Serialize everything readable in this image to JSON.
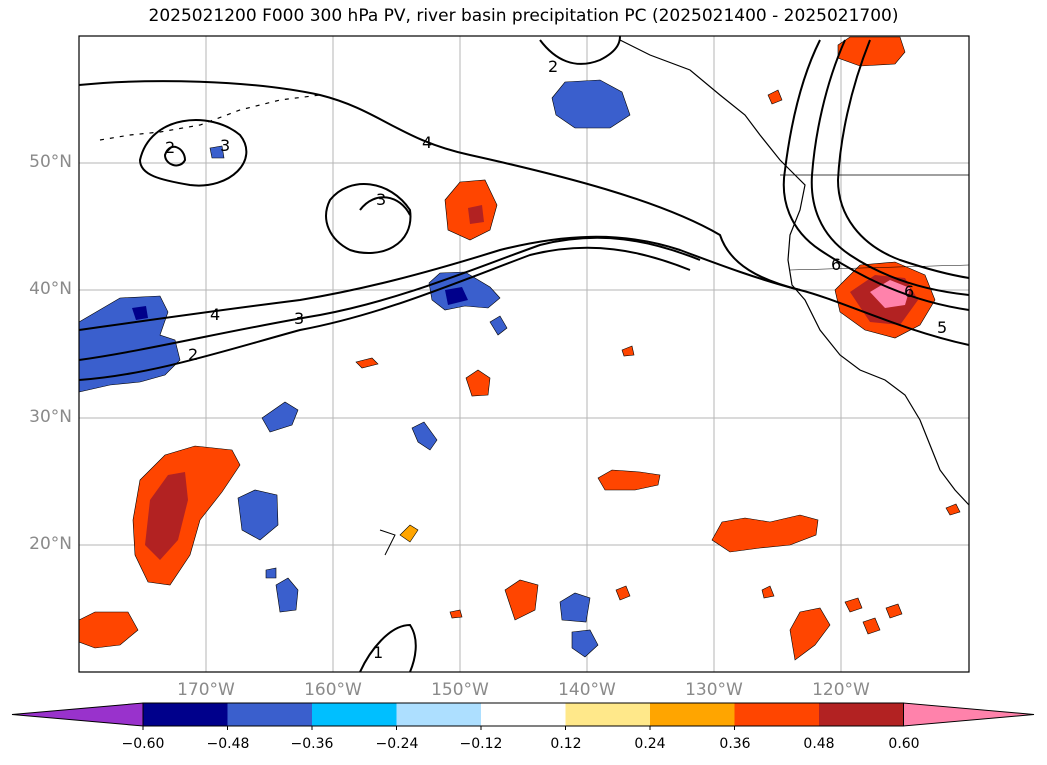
{
  "title": "2025021200 F000 300 hPa PV, river basin precipitation PC (2025021400 - 2025021700)",
  "lat_labels": [
    "50°N",
    "40°N",
    "30°N",
    "20°N"
  ],
  "lon_labels": [
    "170°W",
    "160°W",
    "150°W",
    "140°W",
    "130°W",
    "120°W"
  ],
  "contour_labels": [
    "2",
    "3",
    "4",
    "3",
    "4",
    "3",
    "2",
    "2",
    "1",
    "5",
    "6",
    "6"
  ],
  "colorbar": {
    "ticks": [
      "−0.60",
      "−0.48",
      "−0.36",
      "−0.24",
      "−0.12",
      "0.12",
      "0.24",
      "0.36",
      "0.48",
      "0.60"
    ],
    "colors": [
      "#9932CC",
      "#00008B",
      "#3A5FCD",
      "#00BFFF",
      "#ADDFFF",
      "#FFFFFF",
      "#FFE88A",
      "#FFA500",
      "#FF4500",
      "#B22222",
      "#FF82AB"
    ]
  },
  "colors": {
    "neg_low": "#9932CC",
    "neg_1": "#00008B",
    "neg_2": "#3A5FCD",
    "neg_3": "#00BFFF",
    "neg_4": "#ADDFFF",
    "pos_1": "#FFE88A",
    "pos_2": "#FFA500",
    "pos_3": "#FF4500",
    "pos_4": "#B22222",
    "pos_5": "#FF82AB"
  }
}
